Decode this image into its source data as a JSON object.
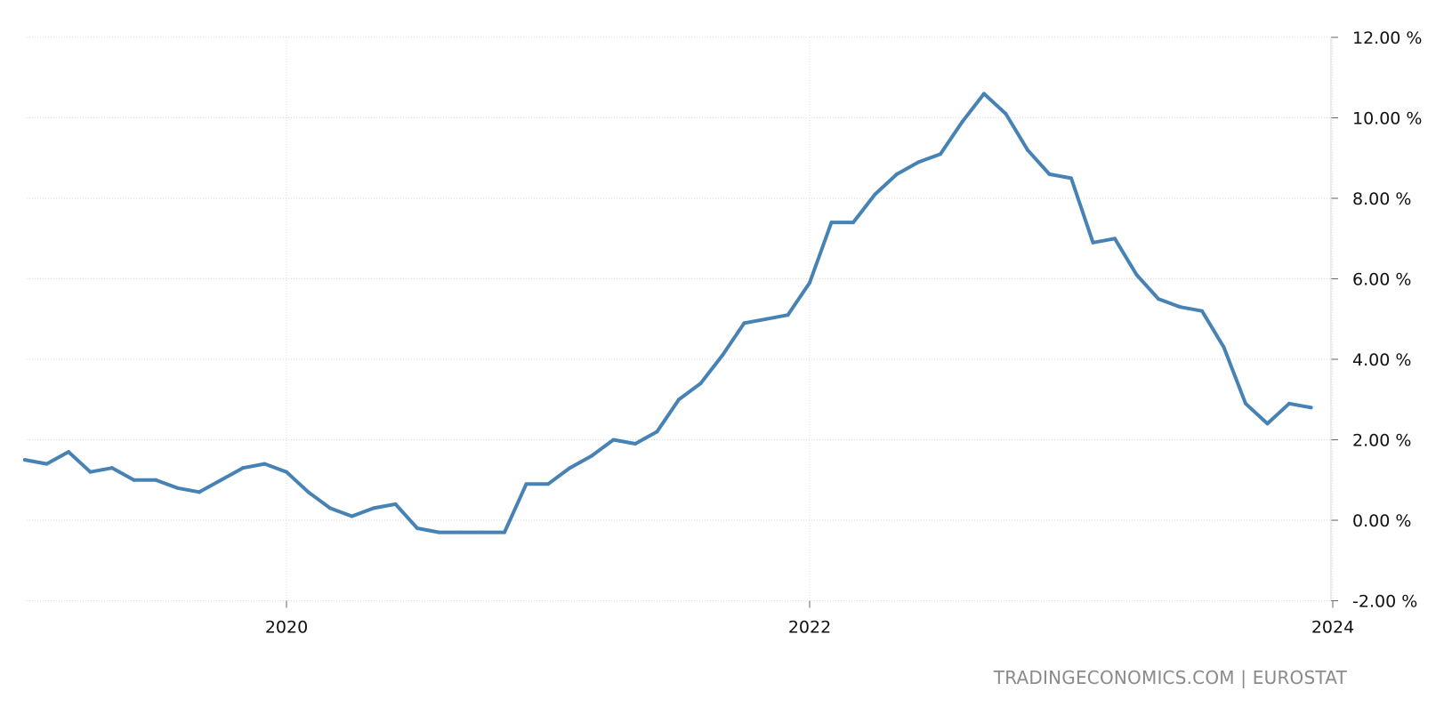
{
  "chart_data": {
    "type": "line",
    "title": "",
    "xlabel": "",
    "ylabel": "",
    "x_start": "2019-01",
    "x_end": "2024-01",
    "ylim": [
      -2,
      12
    ],
    "grid": true,
    "legend": "none",
    "yticks": [
      12,
      10,
      8,
      6,
      4,
      2,
      0,
      -2
    ],
    "ytick_labels": [
      "12.00 %",
      "10.00 %",
      "8.00 %",
      "6.00 %",
      "4.00 %",
      "2.00 %",
      "0.00 %",
      "-2.00 %"
    ],
    "xticks": [
      "2020-01",
      "2022-01",
      "2024-01"
    ],
    "xtick_labels": [
      "2020",
      "2022",
      "2024"
    ],
    "series": [
      {
        "color": "#4682b4",
        "points": [
          {
            "x": "2019-01",
            "y": 1.5
          },
          {
            "x": "2019-02",
            "y": 1.4
          },
          {
            "x": "2019-03",
            "y": 1.7
          },
          {
            "x": "2019-04",
            "y": 1.2
          },
          {
            "x": "2019-05",
            "y": 1.3
          },
          {
            "x": "2019-06",
            "y": 1.0
          },
          {
            "x": "2019-07",
            "y": 1.0
          },
          {
            "x": "2019-08",
            "y": 0.8
          },
          {
            "x": "2019-09",
            "y": 0.7
          },
          {
            "x": "2019-10",
            "y": 1.0
          },
          {
            "x": "2019-11",
            "y": 1.3
          },
          {
            "x": "2019-12",
            "y": 1.4
          },
          {
            "x": "2020-01",
            "y": 1.2
          },
          {
            "x": "2020-02",
            "y": 0.7
          },
          {
            "x": "2020-03",
            "y": 0.3
          },
          {
            "x": "2020-04",
            "y": 0.1
          },
          {
            "x": "2020-05",
            "y": 0.3
          },
          {
            "x": "2020-06",
            "y": 0.4
          },
          {
            "x": "2020-07",
            "y": -0.2
          },
          {
            "x": "2020-08",
            "y": -0.3
          },
          {
            "x": "2020-09",
            "y": -0.3
          },
          {
            "x": "2020-10",
            "y": -0.3
          },
          {
            "x": "2020-11",
            "y": -0.3
          },
          {
            "x": "2020-12",
            "y": 0.9
          },
          {
            "x": "2021-01",
            "y": 0.9
          },
          {
            "x": "2021-02",
            "y": 1.3
          },
          {
            "x": "2021-03",
            "y": 1.6
          },
          {
            "x": "2021-04",
            "y": 2.0
          },
          {
            "x": "2021-05",
            "y": 1.9
          },
          {
            "x": "2021-06",
            "y": 2.2
          },
          {
            "x": "2021-07",
            "y": 3.0
          },
          {
            "x": "2021-08",
            "y": 3.4
          },
          {
            "x": "2021-09",
            "y": 4.1
          },
          {
            "x": "2021-10",
            "y": 4.9
          },
          {
            "x": "2021-11",
            "y": 5.0
          },
          {
            "x": "2021-12",
            "y": 5.1
          },
          {
            "x": "2022-01",
            "y": 5.9
          },
          {
            "x": "2022-02",
            "y": 7.4
          },
          {
            "x": "2022-03",
            "y": 7.4
          },
          {
            "x": "2022-04",
            "y": 8.1
          },
          {
            "x": "2022-05",
            "y": 8.6
          },
          {
            "x": "2022-06",
            "y": 8.9
          },
          {
            "x": "2022-07",
            "y": 9.1
          },
          {
            "x": "2022-08",
            "y": 9.9
          },
          {
            "x": "2022-09",
            "y": 10.6
          },
          {
            "x": "2022-10",
            "y": 10.1
          },
          {
            "x": "2022-11",
            "y": 9.2
          },
          {
            "x": "2022-12",
            "y": 8.6
          },
          {
            "x": "2023-01",
            "y": 8.5
          },
          {
            "x": "2023-02",
            "y": 6.9
          },
          {
            "x": "2023-03",
            "y": 7.0
          },
          {
            "x": "2023-04",
            "y": 6.1
          },
          {
            "x": "2023-05",
            "y": 5.5
          },
          {
            "x": "2023-06",
            "y": 5.3
          },
          {
            "x": "2023-07",
            "y": 5.2
          },
          {
            "x": "2023-08",
            "y": 4.3
          },
          {
            "x": "2023-09",
            "y": 2.9
          },
          {
            "x": "2023-10",
            "y": 2.4
          },
          {
            "x": "2023-11",
            "y": 2.9
          },
          {
            "x": "2023-12",
            "y": 2.8
          }
        ]
      }
    ]
  },
  "source": "TRADINGECONOMICS.COM  |  EUROSTAT"
}
